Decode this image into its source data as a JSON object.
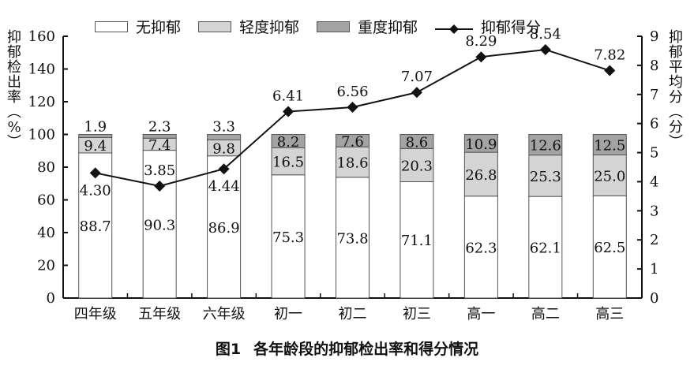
{
  "legend": {
    "none": "无抑郁",
    "mild": "轻度抑郁",
    "severe": "重度抑郁",
    "score": "抑郁得分"
  },
  "axes": {
    "left_title": "抑郁检出率（%）",
    "right_title": "抑郁平均分（分）",
    "left_ticks": [
      "0",
      "20",
      "40",
      "60",
      "80",
      "100",
      "120",
      "140",
      "160"
    ],
    "right_ticks": [
      "0",
      "1",
      "2",
      "3",
      "4",
      "5",
      "6",
      "7",
      "8",
      "9"
    ]
  },
  "caption": {
    "label": "图1",
    "text": "各年龄段的抑郁检出率和得分情况"
  },
  "colors": {
    "none": "#ffffff",
    "mild": "#d4d4d4",
    "severe": "#a3a3a3",
    "line": "#111111"
  },
  "chart_data": {
    "type": "bar",
    "title": "图1 各年龄段的抑郁检出率和得分情况",
    "xlabel": "",
    "ylabel": "抑郁检出率（%）",
    "y2label": "抑郁平均分（分）",
    "ylim": [
      0,
      160
    ],
    "y2lim": [
      0,
      9
    ],
    "stacked": true,
    "legend_position": "top",
    "grid": false,
    "categories": [
      "四年级",
      "五年级",
      "六年级",
      "初一",
      "初二",
      "初三",
      "高一",
      "高二",
      "高三"
    ],
    "series": [
      {
        "name": "无抑郁",
        "type": "bar",
        "axis": "left",
        "values": [
          88.7,
          90.3,
          86.9,
          75.3,
          73.8,
          71.1,
          62.3,
          62.1,
          62.5
        ]
      },
      {
        "name": "轻度抑郁",
        "type": "bar",
        "axis": "left",
        "values": [
          9.4,
          7.4,
          9.8,
          16.5,
          18.6,
          20.3,
          26.8,
          25.3,
          25.0
        ]
      },
      {
        "name": "重度抑郁",
        "type": "bar",
        "axis": "left",
        "values": [
          1.9,
          2.3,
          3.3,
          8.2,
          7.6,
          8.6,
          10.9,
          12.6,
          12.5
        ]
      },
      {
        "name": "抑郁得分",
        "type": "line",
        "axis": "right",
        "values": [
          4.3,
          3.85,
          4.44,
          6.41,
          6.56,
          7.07,
          8.29,
          8.54,
          7.82
        ]
      }
    ]
  }
}
